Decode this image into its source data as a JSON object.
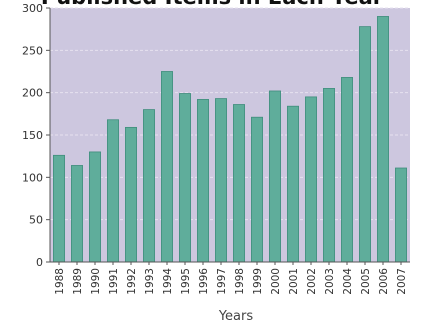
{
  "chart_data": {
    "type": "bar",
    "title": "Published Items in Each Year",
    "xlabel": "Years",
    "ylabel": "",
    "ylim": [
      0,
      300
    ],
    "yticks": [
      0,
      50,
      100,
      150,
      200,
      250,
      300
    ],
    "grid": true,
    "categories": [
      "1988",
      "1989",
      "1990",
      "1991",
      "1992",
      "1993",
      "1994",
      "1995",
      "1996",
      "1997",
      "1998",
      "1999",
      "2000",
      "2001",
      "2002",
      "2003",
      "2004",
      "2005",
      "2006",
      "2007"
    ],
    "values": [
      126,
      114,
      130,
      168,
      159,
      180,
      225,
      199,
      192,
      193,
      186,
      171,
      202,
      184,
      195,
      205,
      218,
      278,
      290,
      111
    ]
  },
  "colors": {
    "plot_background": "#cdc7df",
    "bar_fill": "#5fad9b",
    "bar_edge": "#3f8d7c",
    "gridline": "#e6e2ef",
    "axis": "#555555"
  }
}
